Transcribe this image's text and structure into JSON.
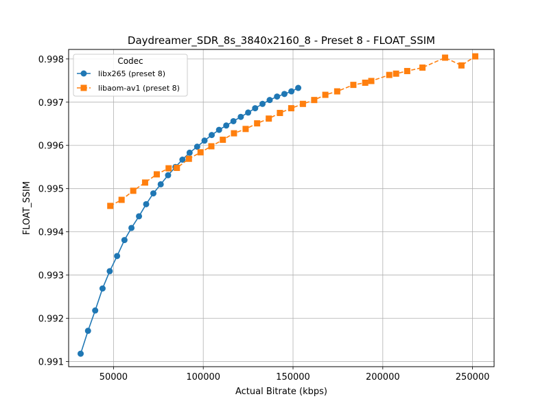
{
  "chart_data": {
    "type": "line",
    "title": "Daydreamer_SDR_8s_3840x2160_8 - Preset 8 - FLOAT_SSIM",
    "xlabel": "Actual Bitrate (kbps)",
    "ylabel": "FLOAT_SSIM",
    "xlim": [
      25000,
      262000
    ],
    "ylim": [
      0.99088,
      0.99822
    ],
    "xticks": [
      50000,
      100000,
      150000,
      200000,
      250000
    ],
    "xtick_labels": [
      "50000",
      "100000",
      "150000",
      "200000",
      "250000"
    ],
    "yticks": [
      0.991,
      0.992,
      0.993,
      0.994,
      0.995,
      0.996,
      0.997,
      0.998
    ],
    "ytick_labels": [
      "0.991",
      "0.992",
      "0.993",
      "0.994",
      "0.995",
      "0.996",
      "0.997",
      "0.998"
    ],
    "grid": true,
    "legend": {
      "title": "Codec",
      "placement": "top-left"
    },
    "series": [
      {
        "name": "libx265 (preset 8)",
        "color": "#1f77b4",
        "marker": "circle",
        "line_style": "solid",
        "x": [
          31700,
          35800,
          39800,
          43900,
          47900,
          52000,
          56100,
          60000,
          64200,
          68200,
          72200,
          76300,
          80400,
          84500,
          88400,
          92400,
          96600,
          100700,
          104700,
          108800,
          112800,
          116800,
          120900,
          125000,
          128900,
          133000,
          137000,
          141100,
          145200,
          149100,
          152900
        ],
        "y": [
          0.99118,
          0.99171,
          0.99218,
          0.99269,
          0.99309,
          0.99344,
          0.99381,
          0.99409,
          0.99436,
          0.99464,
          0.99489,
          0.9951,
          0.99531,
          0.9955,
          0.99567,
          0.99583,
          0.99597,
          0.99611,
          0.99624,
          0.99636,
          0.99646,
          0.99656,
          0.99666,
          0.99676,
          0.99686,
          0.99696,
          0.99705,
          0.99713,
          0.99719,
          0.99725,
          0.99733
        ]
      },
      {
        "name": "libaom-av1 (preset 8)",
        "color": "#ff7f0e",
        "marker": "square",
        "line_style": "dashed",
        "x": [
          48200,
          54500,
          61000,
          67600,
          74100,
          80700,
          85300,
          92000,
          98500,
          104500,
          110900,
          117100,
          123600,
          130000,
          136500,
          142700,
          149000,
          155500,
          161800,
          168000,
          174600,
          183600,
          190200,
          193600,
          203600,
          207400,
          213600,
          222100,
          234700,
          243800,
          251500
        ],
        "y": [
          0.9946,
          0.99474,
          0.99495,
          0.99514,
          0.99533,
          0.99547,
          0.99548,
          0.99569,
          0.99584,
          0.99598,
          0.99613,
          0.99628,
          0.99638,
          0.99651,
          0.99662,
          0.99675,
          0.99686,
          0.99696,
          0.99705,
          0.99717,
          0.99725,
          0.9974,
          0.99745,
          0.99749,
          0.99763,
          0.99766,
          0.99772,
          0.9978,
          0.99803,
          0.99785,
          0.99806
        ]
      }
    ]
  }
}
